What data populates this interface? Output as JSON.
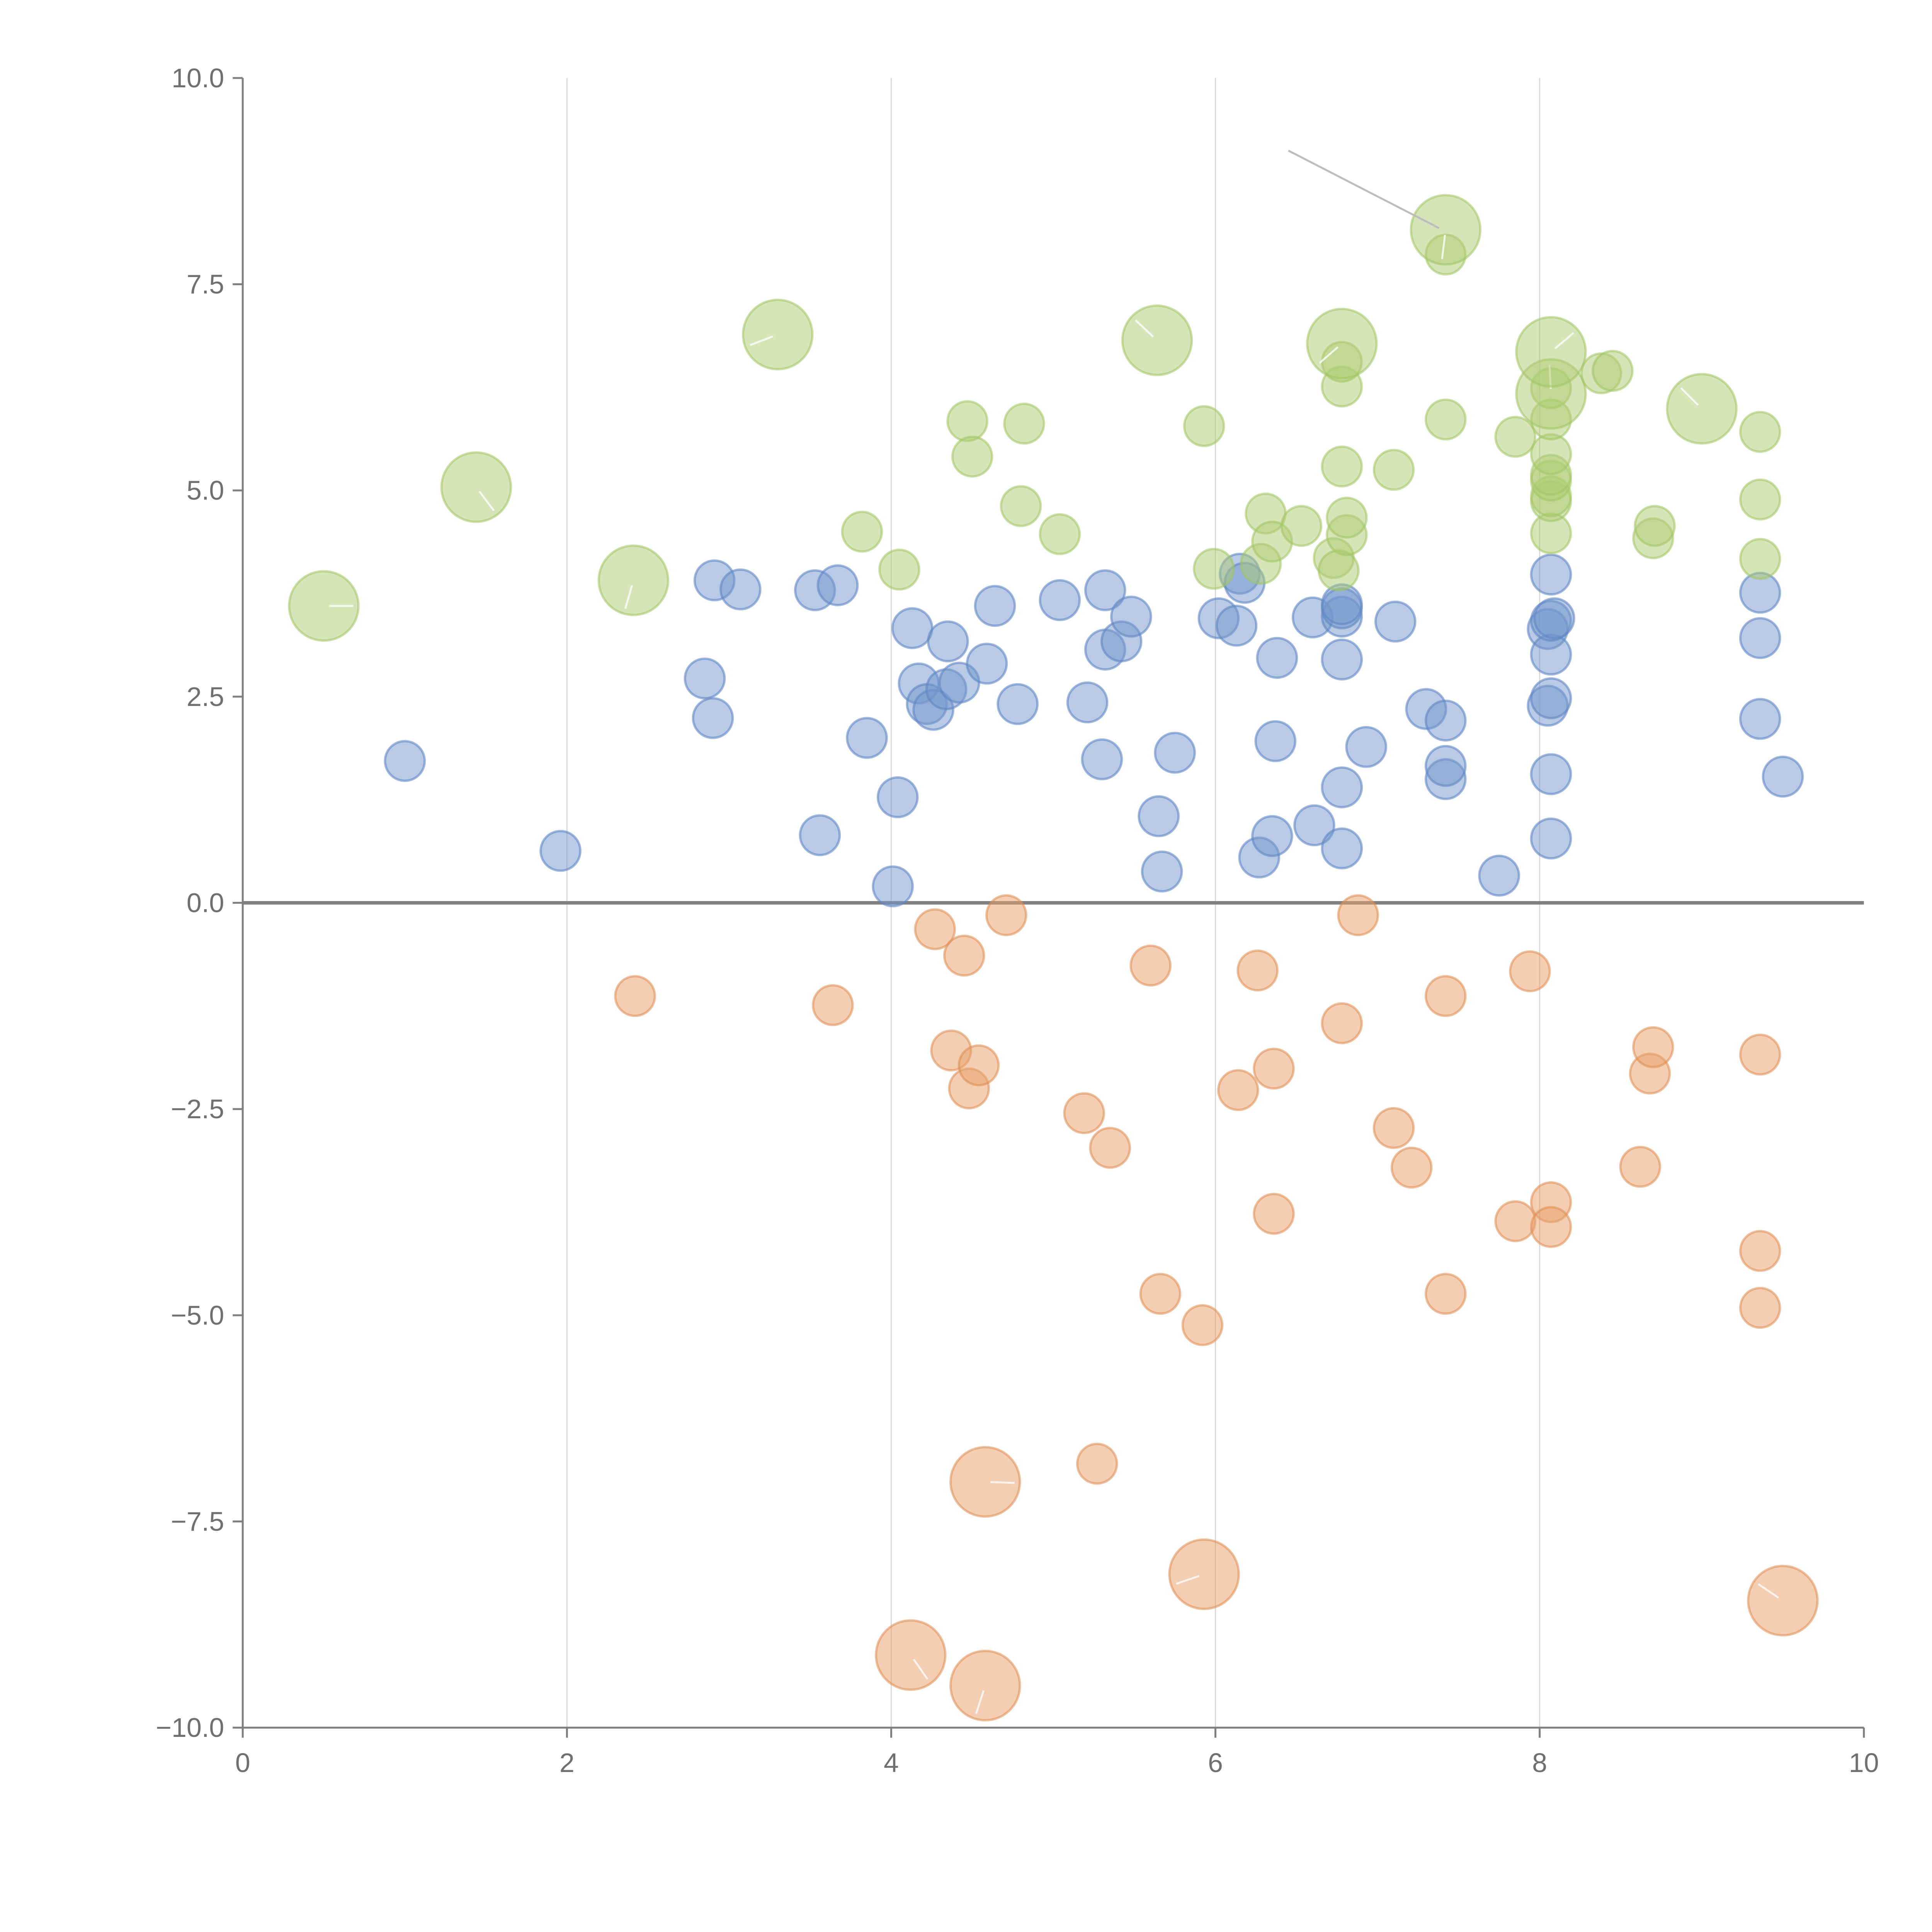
{
  "chart_data": {
    "type": "scatter",
    "title": "",
    "xlabel": "",
    "ylabel": "",
    "xlim": [
      0,
      10
    ],
    "ylim": [
      -10,
      10
    ],
    "x_ticks": [
      0,
      2,
      4,
      6,
      8,
      10
    ],
    "x_tick_labels": [
      "0",
      "2",
      "4",
      "6",
      "8",
      "10"
    ],
    "y_ticks": [
      10,
      7.5,
      5,
      2.5,
      0,
      -2.5,
      -5,
      -7.5,
      -10
    ],
    "y_tick_labels": [
      "10.0",
      "7.5",
      "5.0",
      "2.5",
      "0.0",
      "−2.5",
      "−5.0",
      "−7.5",
      "−10.0"
    ],
    "grid": "vertical lines at x ticks",
    "reference_line": {
      "y": 0
    },
    "series": [
      {
        "name": "blue",
        "color": "#7195cb",
        "points": [
          [
            1.0,
            1.72,
            1
          ],
          [
            1.96,
            0.63,
            1
          ],
          [
            2.85,
            2.72,
            1
          ],
          [
            2.9,
            2.24,
            1
          ],
          [
            2.91,
            3.91,
            1
          ],
          [
            3.07,
            3.8,
            1
          ],
          [
            3.53,
            3.79,
            1
          ],
          [
            3.56,
            0.82,
            1
          ],
          [
            3.67,
            3.85,
            1
          ],
          [
            3.85,
            2.0,
            1
          ],
          [
            4.01,
            0.2,
            1
          ],
          [
            4.04,
            1.28,
            1
          ],
          [
            4.13,
            3.33,
            1
          ],
          [
            4.17,
            2.66,
            1
          ],
          [
            4.22,
            2.41,
            1
          ],
          [
            4.26,
            2.34,
            1
          ],
          [
            4.34,
            2.59,
            1
          ],
          [
            4.35,
            3.17,
            1
          ],
          [
            4.42,
            2.67,
            1
          ],
          [
            4.59,
            2.9,
            1
          ],
          [
            4.64,
            3.6,
            1
          ],
          [
            4.78,
            2.41,
            1
          ],
          [
            5.04,
            3.67,
            1
          ],
          [
            5.21,
            2.43,
            1
          ],
          [
            5.3,
            1.74,
            1
          ],
          [
            5.32,
            3.07,
            1
          ],
          [
            5.32,
            3.79,
            1
          ],
          [
            5.42,
            3.17,
            1
          ],
          [
            5.48,
            3.47,
            1
          ],
          [
            5.65,
            1.05,
            1
          ],
          [
            5.67,
            0.38,
            1
          ],
          [
            5.75,
            1.82,
            1
          ],
          [
            6.02,
            3.45,
            1
          ],
          [
            6.13,
            3.36,
            1
          ],
          [
            6.15,
            3.99,
            1
          ],
          [
            6.18,
            3.88,
            1
          ],
          [
            6.27,
            0.55,
            1
          ],
          [
            6.35,
            0.81,
            1
          ],
          [
            6.37,
            1.96,
            1
          ],
          [
            6.38,
            2.97,
            1
          ],
          [
            6.61,
            0.94,
            1
          ],
          [
            6.6,
            3.46,
            1
          ],
          [
            6.78,
            0.66,
            1
          ],
          [
            6.78,
            1.4,
            1
          ],
          [
            6.78,
            2.95,
            1
          ],
          [
            6.78,
            3.47,
            1
          ],
          [
            6.78,
            3.57,
            1
          ],
          [
            6.78,
            3.62,
            1
          ],
          [
            6.93,
            1.89,
            1
          ],
          [
            7.11,
            3.41,
            1
          ],
          [
            7.3,
            2.35,
            1
          ],
          [
            7.42,
            1.5,
            1
          ],
          [
            7.42,
            1.66,
            1
          ],
          [
            7.42,
            2.21,
            1
          ],
          [
            7.75,
            0.33,
            1
          ],
          [
            8.05,
            2.39,
            1
          ],
          [
            8.05,
            3.32,
            1
          ],
          [
            8.07,
            0.78,
            1
          ],
          [
            8.07,
            1.56,
            1
          ],
          [
            8.07,
            2.48,
            1
          ],
          [
            8.07,
            3.01,
            1
          ],
          [
            8.07,
            3.42,
            1
          ],
          [
            8.09,
            3.45,
            1
          ],
          [
            8.07,
            3.98,
            1
          ],
          [
            9.36,
            2.23,
            1
          ],
          [
            9.36,
            3.21,
            1
          ],
          [
            9.36,
            3.76,
            1
          ],
          [
            9.5,
            1.53,
            1
          ]
        ]
      },
      {
        "name": "green",
        "color": "#aecc72",
        "points": [
          [
            0.5,
            3.6,
            2
          ],
          [
            1.44,
            5.04,
            2
          ],
          [
            2.41,
            3.91,
            2
          ],
          [
            3.3,
            6.89,
            2
          ],
          [
            3.82,
            4.5,
            1
          ],
          [
            4.05,
            4.04,
            1
          ],
          [
            4.47,
            5.84,
            1
          ],
          [
            4.5,
            5.41,
            1
          ],
          [
            4.8,
            4.81,
            1
          ],
          [
            4.82,
            5.81,
            1
          ],
          [
            5.04,
            4.47,
            1
          ],
          [
            5.64,
            6.82,
            2
          ],
          [
            5.93,
            5.78,
            1
          ],
          [
            5.99,
            4.05,
            1
          ],
          [
            6.28,
            4.11,
            1
          ],
          [
            6.31,
            4.72,
            1
          ],
          [
            6.35,
            4.38,
            1
          ],
          [
            6.53,
            4.57,
            1
          ],
          [
            6.73,
            4.18,
            1
          ],
          [
            6.76,
            4.03,
            1
          ],
          [
            6.78,
            5.29,
            1
          ],
          [
            6.78,
            6.26,
            1
          ],
          [
            6.78,
            6.56,
            1
          ],
          [
            6.78,
            6.78,
            2
          ],
          [
            6.81,
            4.46,
            1
          ],
          [
            6.81,
            4.67,
            1
          ],
          [
            7.1,
            5.25,
            1
          ],
          [
            7.42,
            5.86,
            1
          ],
          [
            7.42,
            7.86,
            1
          ],
          [
            7.42,
            8.16,
            2
          ],
          [
            7.85,
            5.65,
            1
          ],
          [
            8.07,
            4.48,
            1
          ],
          [
            8.07,
            4.87,
            1
          ],
          [
            8.07,
            4.93,
            1
          ],
          [
            8.07,
            5.12,
            1
          ],
          [
            8.07,
            5.19,
            1
          ],
          [
            8.07,
            5.44,
            1
          ],
          [
            8.07,
            5.86,
            1
          ],
          [
            8.07,
            6.24,
            1
          ],
          [
            8.07,
            6.17,
            2
          ],
          [
            8.07,
            6.68,
            2
          ],
          [
            8.38,
            6.42,
            1
          ],
          [
            8.45,
            6.45,
            1
          ],
          [
            8.7,
            4.42,
            1
          ],
          [
            8.71,
            4.57,
            1
          ],
          [
            9.0,
            5.99,
            2
          ],
          [
            9.36,
            4.17,
            1
          ],
          [
            9.36,
            4.89,
            1
          ],
          [
            9.36,
            5.71,
            1
          ]
        ]
      },
      {
        "name": "orange",
        "color": "#e89e66",
        "points": [
          [
            2.42,
            -1.13,
            1
          ],
          [
            3.64,
            -1.24,
            1
          ],
          [
            4.27,
            -0.32,
            1
          ],
          [
            4.37,
            -1.79,
            1
          ],
          [
            4.45,
            -0.64,
            1
          ],
          [
            4.48,
            -2.25,
            1
          ],
          [
            4.54,
            -1.97,
            1
          ],
          [
            4.71,
            -0.15,
            1
          ],
          [
            5.19,
            -2.55,
            1
          ],
          [
            5.35,
            -2.97,
            1
          ],
          [
            5.6,
            -0.76,
            1
          ],
          [
            5.66,
            -4.74,
            1
          ],
          [
            5.92,
            -5.12,
            1
          ],
          [
            6.14,
            -2.27,
            1
          ],
          [
            6.26,
            -0.82,
            1
          ],
          [
            6.36,
            -2.01,
            1
          ],
          [
            6.36,
            -3.77,
            1
          ],
          [
            6.78,
            -1.46,
            1
          ],
          [
            6.88,
            -0.15,
            1
          ],
          [
            7.1,
            -2.73,
            1
          ],
          [
            7.21,
            -3.21,
            1
          ],
          [
            7.42,
            -1.13,
            1
          ],
          [
            7.42,
            -4.74,
            1
          ],
          [
            7.85,
            -3.86,
            1
          ],
          [
            7.94,
            -0.83,
            1
          ],
          [
            8.07,
            -3.63,
            1
          ],
          [
            8.07,
            -3.93,
            1
          ],
          [
            8.62,
            -3.2,
            1
          ],
          [
            8.68,
            -2.07,
            1
          ],
          [
            8.7,
            -1.75,
            1
          ],
          [
            9.36,
            -1.84,
            1
          ],
          [
            9.36,
            -4.22,
            1
          ],
          [
            9.36,
            -4.91,
            1
          ],
          [
            5.27,
            -6.8,
            1
          ],
          [
            4.58,
            -7.02,
            2
          ],
          [
            4.12,
            -9.12,
            2
          ],
          [
            4.58,
            -9.49,
            2
          ],
          [
            5.93,
            -8.14,
            2
          ],
          [
            9.5,
            -8.46,
            2
          ]
        ]
      }
    ],
    "size_levels": {
      "1": "small",
      "2": "large"
    }
  }
}
